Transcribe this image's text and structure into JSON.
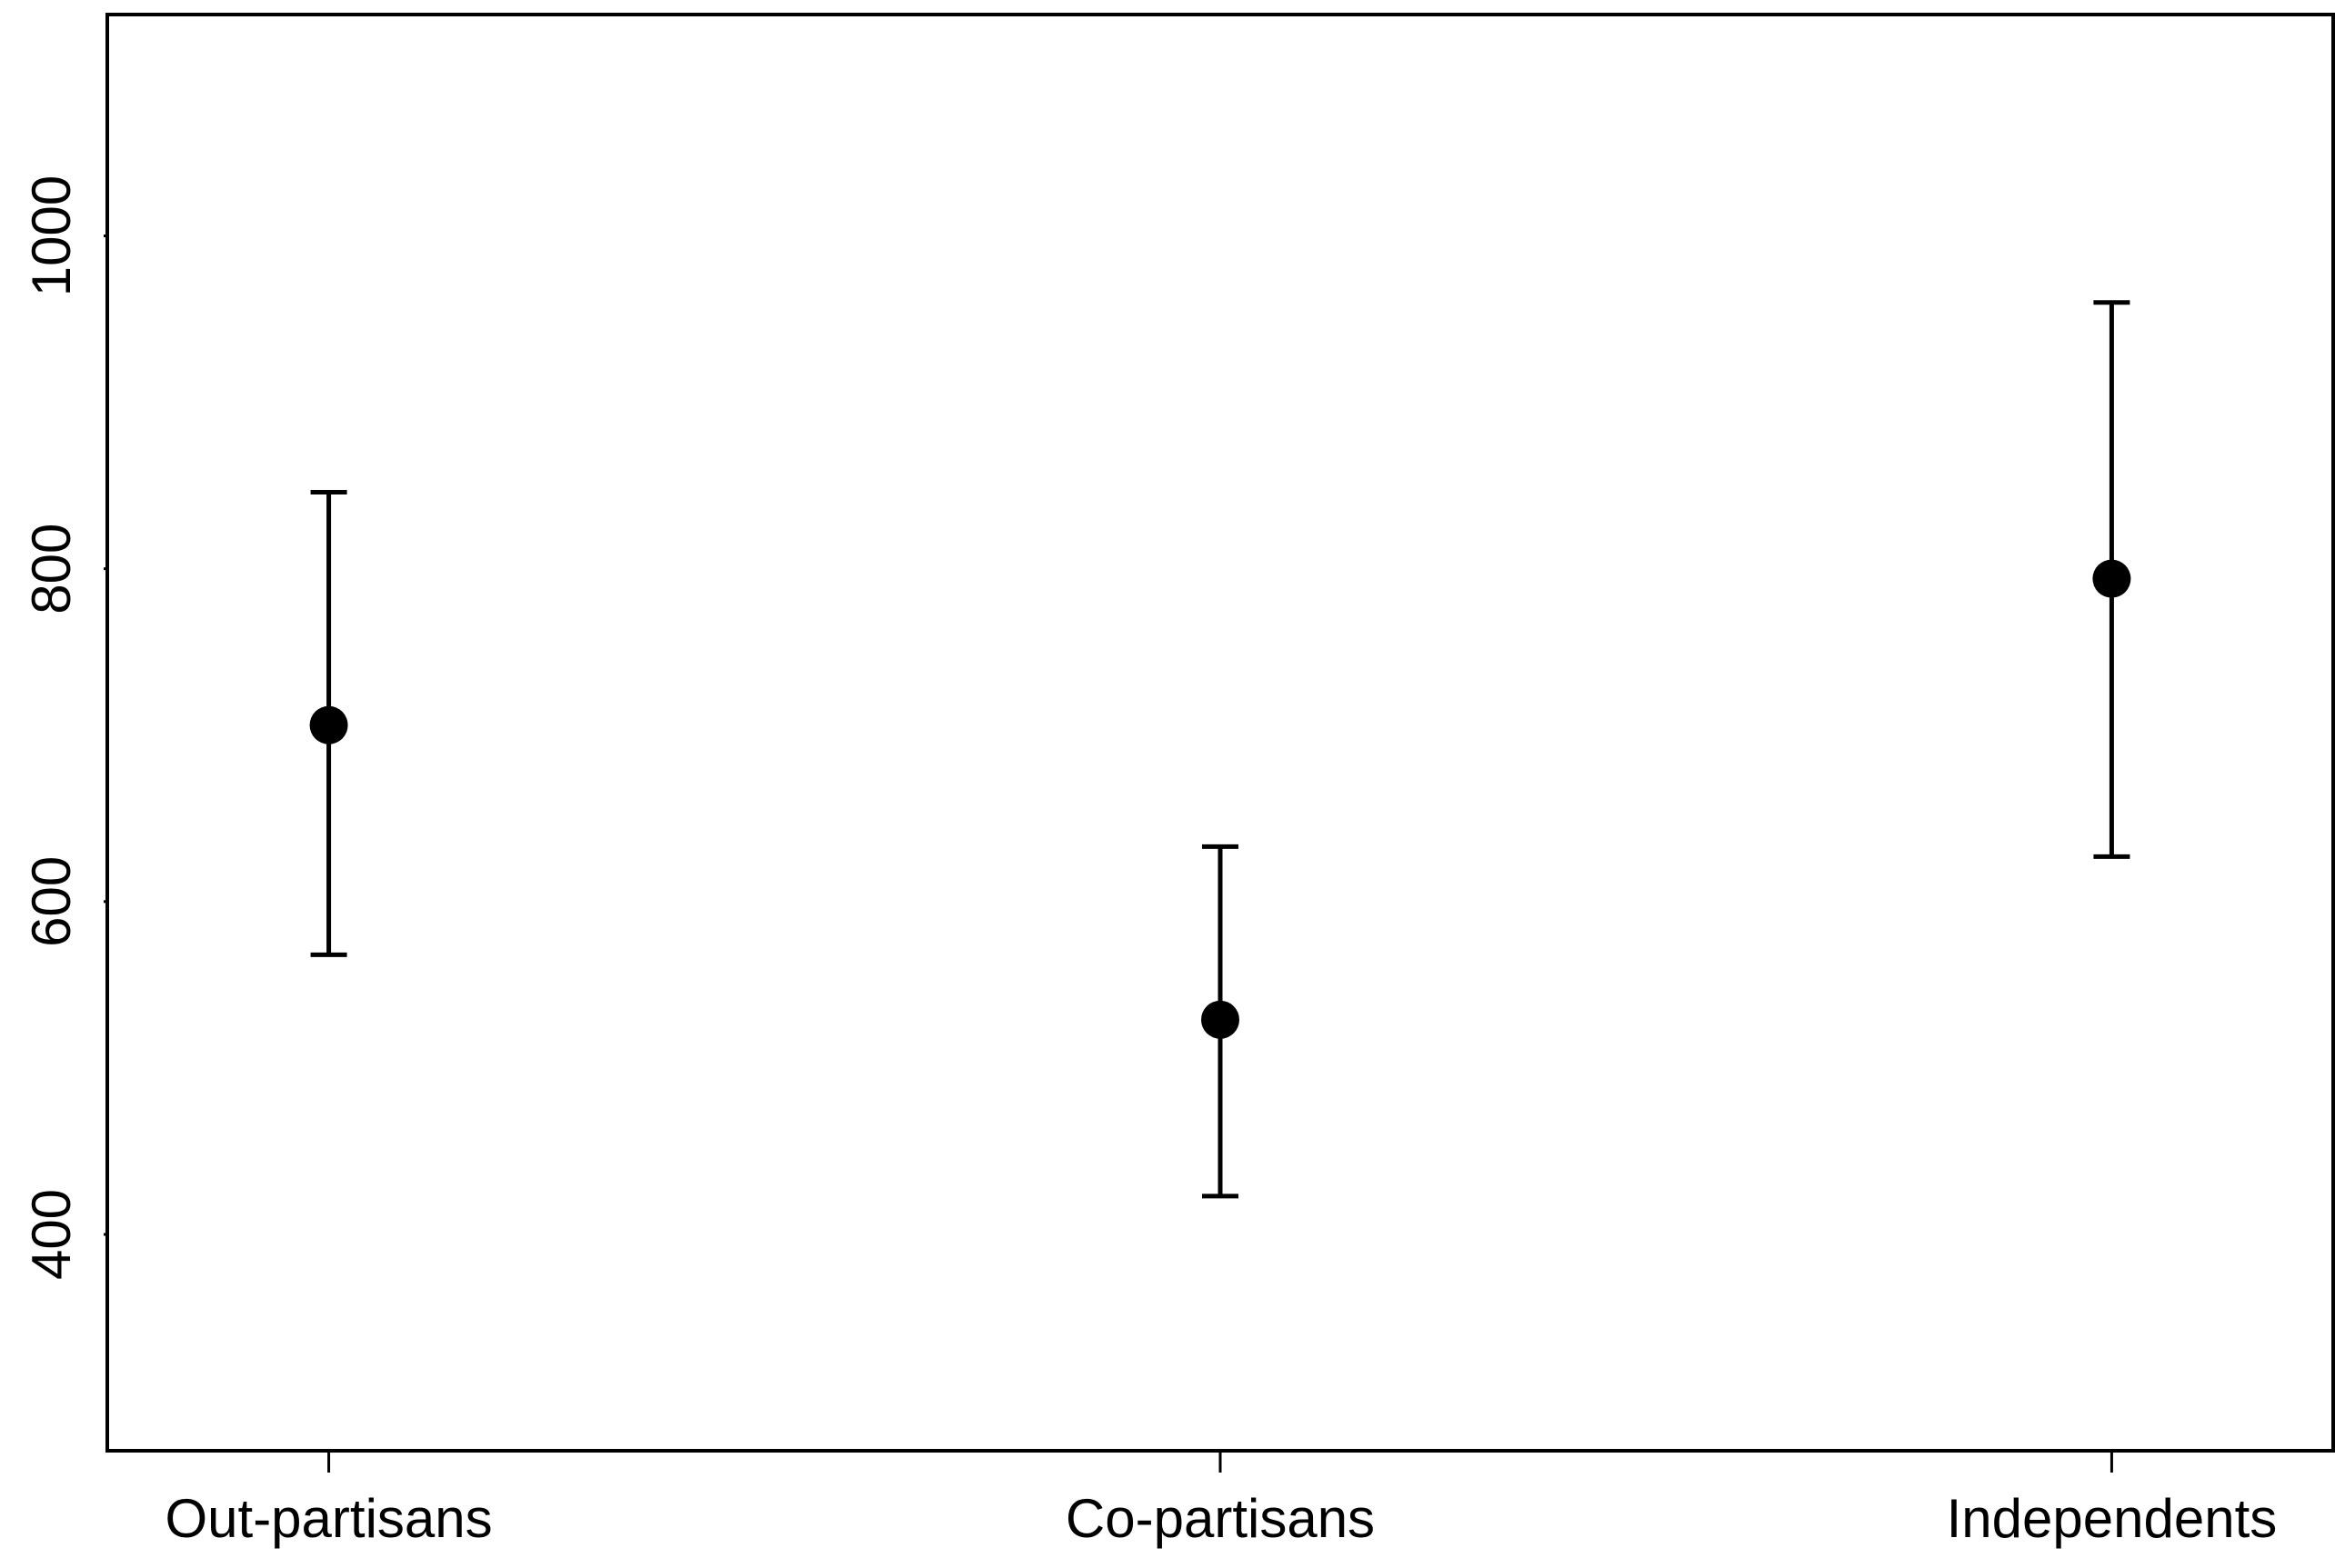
{
  "chart_data": {
    "type": "errorbar",
    "categories": [
      "Out-partisans",
      "Co-partisans",
      "Independents"
    ],
    "values": [
      706,
      529,
      794
    ],
    "lower": [
      568,
      423,
      627
    ],
    "upper": [
      846,
      633,
      960
    ],
    "color": "#000000",
    "ylim": [
      270,
      1133
    ],
    "yticks": [
      400,
      600,
      800,
      1000
    ],
    "grid": false
  }
}
